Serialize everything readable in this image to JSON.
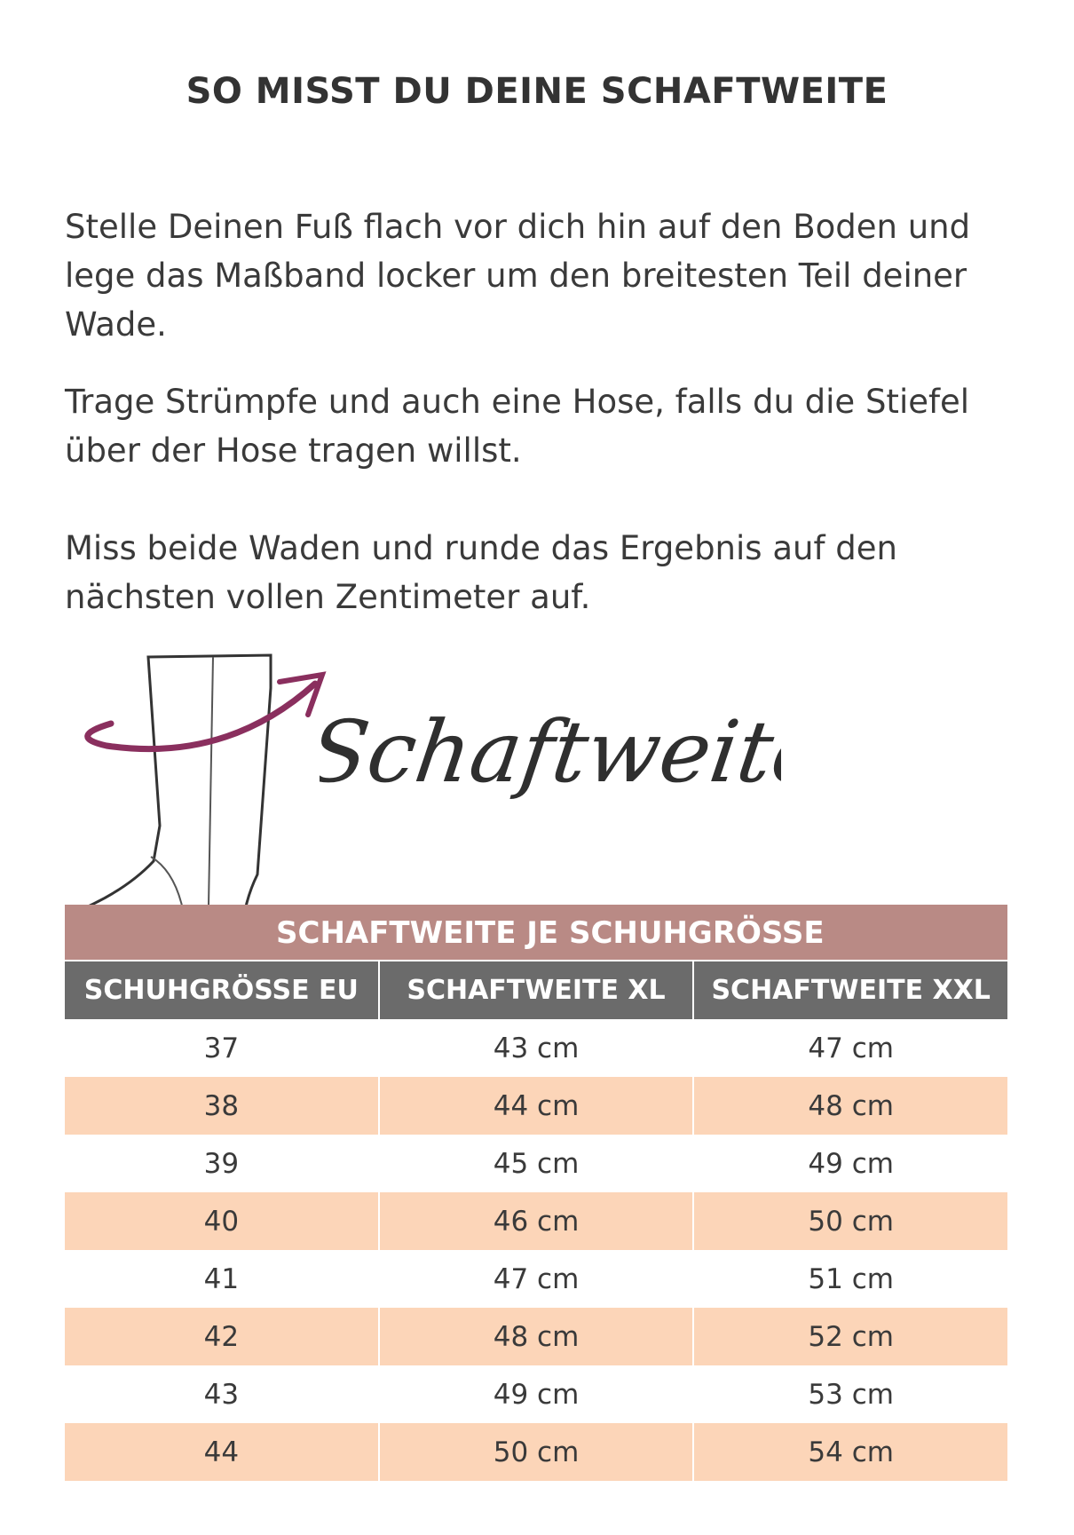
{
  "title": "SO MISST DU DEINE SCHAFTWEITE",
  "paragraphs": [
    "Stelle Deinen Fuß flach vor dich hin auf den Boden und lege das Maßband locker um den breitesten Teil deiner Wade.",
    "Trage Strümpfe und auch eine Hose, falls du die Stiefel über der Hose tragen willst.",
    "Miss beide Waden und runde das Ergebnis auf den nächsten vollen Zentimeter auf."
  ],
  "illustration": {
    "script_text": "Schaftweite",
    "arrow_color": "#8a2f5e",
    "icon": "boot-icon"
  },
  "table": {
    "caption": "SCHAFTWEITE JE SCHUHGRÖSSE",
    "headers": [
      "SCHUHGRÖSSE EU",
      "SCHAFTWEITE XL",
      "SCHAFTWEITE XXL"
    ],
    "rows": [
      [
        "37",
        "43 cm",
        "47 cm"
      ],
      [
        "38",
        "44 cm",
        "48 cm"
      ],
      [
        "39",
        "45 cm",
        "49 cm"
      ],
      [
        "40",
        "46 cm",
        "50 cm"
      ],
      [
        "41",
        "47 cm",
        "51 cm"
      ],
      [
        "42",
        "48 cm",
        "52 cm"
      ],
      [
        "43",
        "49 cm",
        "53 cm"
      ],
      [
        "44",
        "50 cm",
        "54 cm"
      ]
    ]
  },
  "colors": {
    "band": "#b98a85",
    "header": "#6b6b6b",
    "stripe": "#fcd5b8"
  }
}
